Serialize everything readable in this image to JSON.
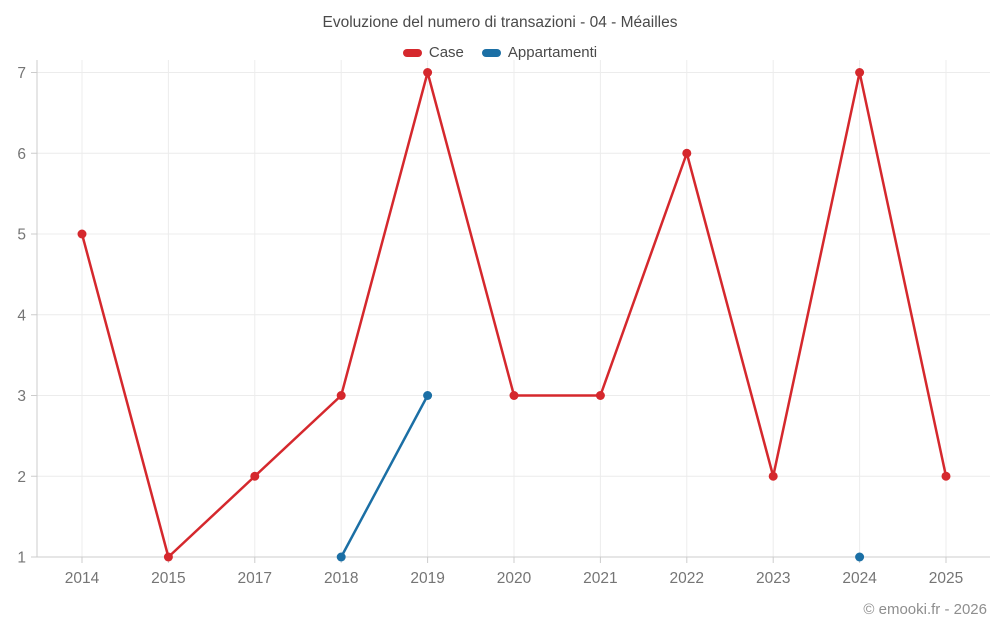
{
  "header": {
    "title": "Evoluzione del numero di transazioni - 04 - Méailles"
  },
  "legend": {
    "items": [
      {
        "label": "Case",
        "color": "#d5282d"
      },
      {
        "label": "Appartamenti",
        "color": "#1b6fa5"
      }
    ]
  },
  "footer": {
    "credit": "© emooki.fr - 2026"
  },
  "chart_data": {
    "type": "line",
    "title": "Evoluzione del numero di transazioni - 04 - Méailles",
    "categories": [
      "2014",
      "2015",
      "2017",
      "2018",
      "2019",
      "2020",
      "2021",
      "2022",
      "2023",
      "2024",
      "2025"
    ],
    "series": [
      {
        "name": "Case",
        "color": "#d5282d",
        "values": [
          5,
          1,
          2,
          3,
          7,
          3,
          3,
          6,
          2,
          7,
          2
        ]
      },
      {
        "name": "Appartamenti",
        "color": "#1b6fa5",
        "values": [
          null,
          null,
          null,
          1,
          3,
          null,
          null,
          null,
          null,
          1,
          null
        ]
      }
    ],
    "ylim": [
      1,
      7
    ],
    "yticks": [
      1,
      2,
      3,
      4,
      5,
      6,
      7
    ],
    "grid": true,
    "legend_position": "top",
    "marker": "circle",
    "colors": {
      "grid_line": "#ececec",
      "axis_line": "#cccccc",
      "tick_label": "#757575"
    }
  }
}
